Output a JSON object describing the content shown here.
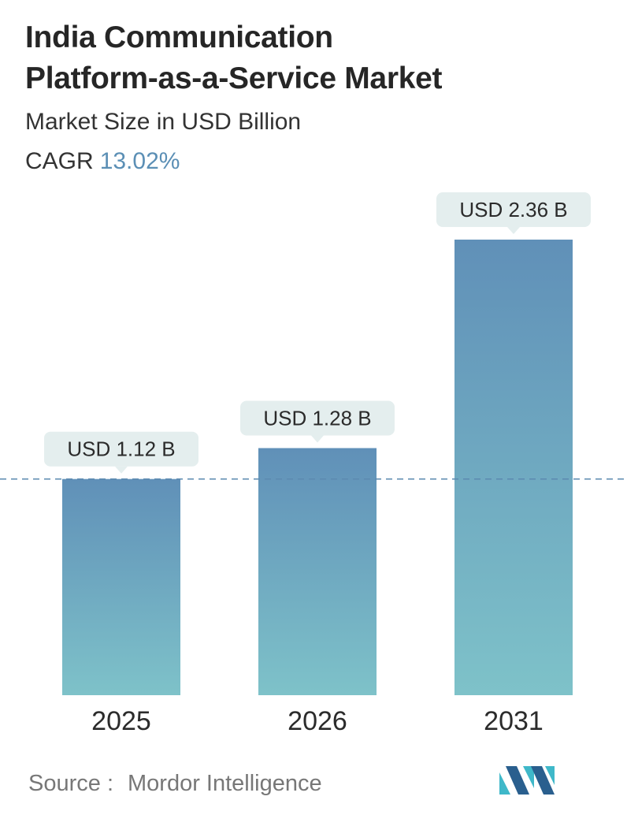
{
  "header": {
    "title_line1": "India Communication",
    "title_line2": "Platform-as-a-Service Market",
    "subtitle": "Market Size in USD Billion",
    "cagr_label": "CAGR",
    "cagr_value": "13.02%"
  },
  "footer": {
    "source_label": "Source :",
    "source_name": "Mordor Intelligence"
  },
  "colors": {
    "bar_top": "#6090b8",
    "bar_bottom": "#7ec2c9",
    "label_bg": "#e4eeee",
    "dashed_line": "#5b8ab0",
    "cagr_accent": "#5b8fb5",
    "logo_dark": "#2a5f8e",
    "logo_light": "#3fb8c9"
  },
  "logo_icon": "mordor-intelligence-logo-icon",
  "chart_data": {
    "type": "bar",
    "categories": [
      "2025",
      "2026",
      "2031"
    ],
    "values": [
      1.12,
      1.28,
      2.36
    ],
    "value_labels": [
      "USD 1.12 B",
      "USD 1.28 B",
      "USD 2.36 B"
    ],
    "ylim": [
      0,
      2.36
    ],
    "reference_line": 1.12,
    "grid": false,
    "legend": "none"
  }
}
